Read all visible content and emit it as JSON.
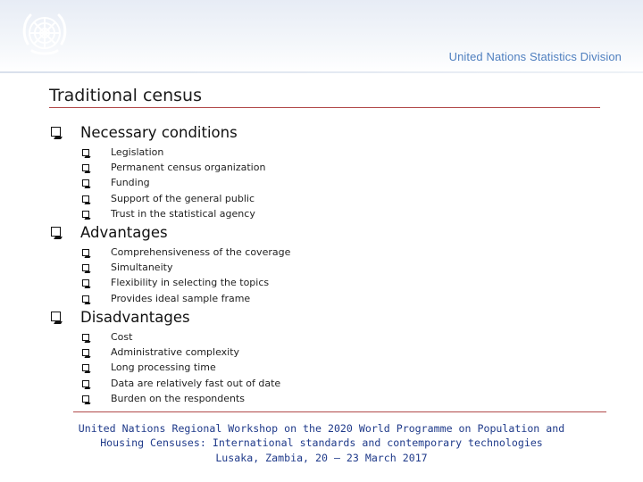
{
  "header": {
    "organization": "United Nations Statistics Division"
  },
  "slide": {
    "title": "Traditional census",
    "sections": [
      {
        "heading": "Necessary conditions",
        "items": [
          "Legislation",
          "Permanent census organization",
          "Funding",
          "Support of the general public",
          "Trust in the statistical agency"
        ]
      },
      {
        "heading": "Advantages",
        "items": [
          "Comprehensiveness of the coverage",
          "Simultaneity",
          "Flexibility in selecting the topics",
          "Provides ideal sample frame"
        ]
      },
      {
        "heading": "Disadvantages",
        "items": [
          "Cost",
          "Administrative complexity",
          "Long processing time",
          "Data are relatively fast out of date",
          "Burden on the respondents"
        ]
      }
    ]
  },
  "footer": {
    "line1": "United Nations Regional Workshop on the 2020 World Programme on Population and",
    "line2": "Housing Censuses: International standards and contemporary technologies",
    "line3": "Lusaka, Zambia, 20 – 23 March 2017"
  },
  "colors": {
    "accent_rule": "#b14a4a",
    "org_text": "#4f7fbf",
    "footer_text": "#1f3a8a"
  }
}
